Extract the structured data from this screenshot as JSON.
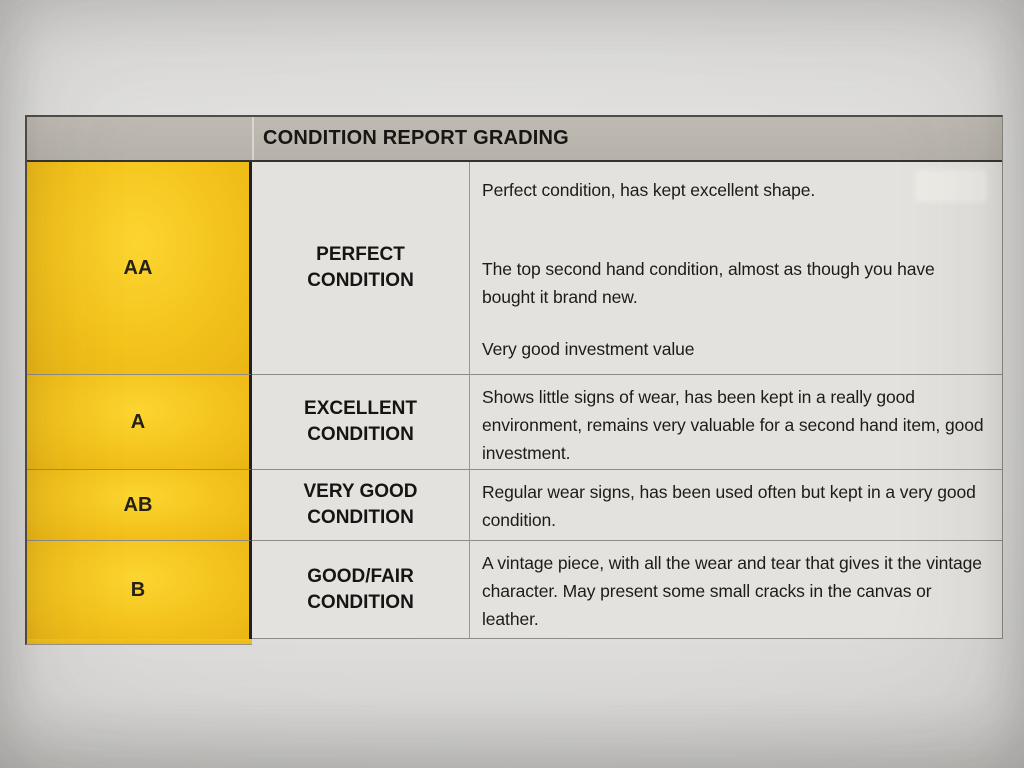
{
  "header": {
    "title": "CONDITION REPORT GRADING"
  },
  "grading_table": {
    "rows": [
      {
        "grade": "AA",
        "condition_line1": "PERFECT",
        "condition_line2": "CONDITION",
        "descriptions": [
          "Perfect condition, has kept excellent shape.",
          "The top second hand condition, almost as though you have bought it brand new.",
          "Very good investment value"
        ]
      },
      {
        "grade": "A",
        "condition_line1": "EXCELLENT",
        "condition_line2": "CONDITION",
        "descriptions": [
          "Shows little signs of wear, has been kept in a really good environment, remains very valuable for a second hand item, good investment."
        ]
      },
      {
        "grade": "AB",
        "condition_line1": "VERY GOOD",
        "condition_line2": "CONDITION",
        "descriptions": [
          "Regular wear signs, has been used often but kept in a very good condition."
        ]
      },
      {
        "grade": "B",
        "condition_line1": "GOOD/FAIR",
        "condition_line2": "CONDITION",
        "descriptions": [
          "A vintage piece, with all the wear and tear that gives it the vintage character. May present some small cracks in the canvas or leather."
        ]
      }
    ]
  },
  "colors": {
    "grade_column_yellow": "#f4c31c",
    "header_bar_gray": "#b6b2aa",
    "cell_background": "#e4e2de",
    "text": "#1d1c1a",
    "paper": "#dedddb"
  }
}
